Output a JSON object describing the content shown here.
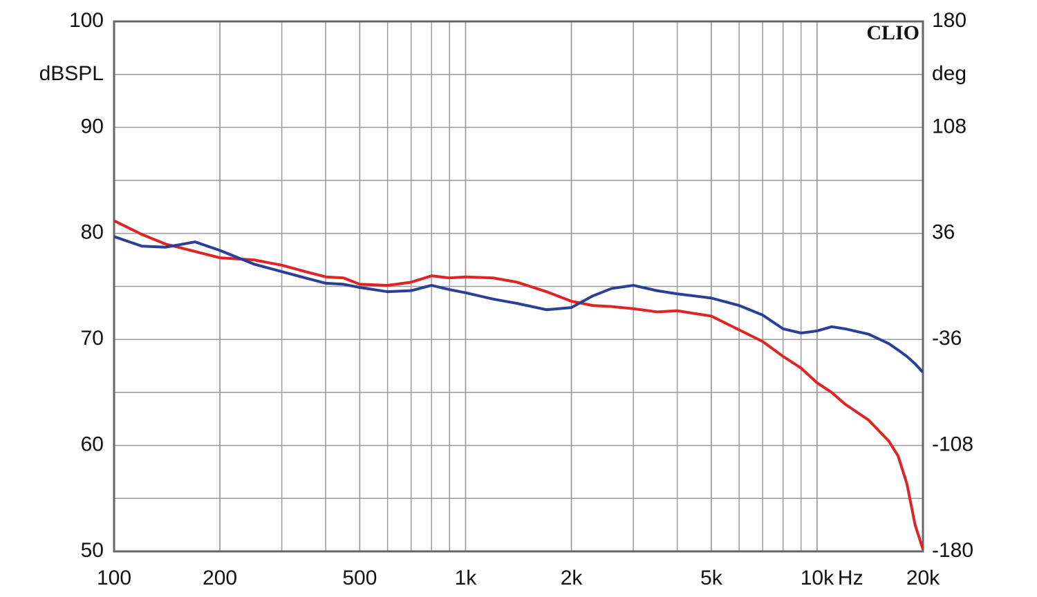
{
  "chart_data": {
    "type": "line",
    "y_label": "dBSPL",
    "y2_label": "deg",
    "x_unit": "Hz",
    "annotation": "CLIO",
    "x": [
      100,
      120,
      140,
      170,
      200,
      250,
      300,
      350,
      400,
      450,
      500,
      600,
      700,
      800,
      900,
      1000,
      1200,
      1400,
      1700,
      2000,
      2300,
      2600,
      3000,
      3500,
      4000,
      5000,
      6000,
      7000,
      8000,
      9000,
      10000,
      11000,
      12000,
      14000,
      16000,
      17000,
      18000,
      19000,
      20000
    ],
    "series": [
      {
        "color": "#e02323",
        "values": [
          81.2,
          79.9,
          79.0,
          78.3,
          77.7,
          77.5,
          77.0,
          76.4,
          75.9,
          75.8,
          75.2,
          75.1,
          75.4,
          76.0,
          75.8,
          75.9,
          75.8,
          75.4,
          74.5,
          73.6,
          73.2,
          73.1,
          72.9,
          72.6,
          72.7,
          72.2,
          70.9,
          69.8,
          68.4,
          67.3,
          65.9,
          65.0,
          63.9,
          62.4,
          60.4,
          59.0,
          56.4,
          52.5,
          50.2
        ]
      },
      {
        "color": "#2b3f98",
        "values": [
          79.7,
          78.8,
          78.7,
          79.2,
          78.4,
          77.1,
          76.4,
          75.8,
          75.3,
          75.2,
          74.9,
          74.5,
          74.6,
          75.1,
          74.7,
          74.4,
          73.8,
          73.4,
          72.8,
          73.0,
          74.1,
          74.8,
          75.1,
          74.6,
          74.3,
          73.9,
          73.2,
          72.3,
          71.0,
          70.6,
          70.8,
          71.2,
          71.0,
          70.5,
          69.6,
          69.0,
          68.4,
          67.7,
          66.9
        ]
      }
    ],
    "log_x": true,
    "xlim": [
      100,
      20000
    ],
    "xticks": [
      100,
      200,
      500,
      {
        "value": 1000,
        "label": "1k"
      },
      {
        "value": 2000,
        "label": "2k"
      },
      {
        "value": 5000,
        "label": "5k"
      },
      {
        "value": 10000,
        "label": "10k"
      },
      {
        "value": 20000,
        "label": "20k"
      }
    ],
    "ylim": [
      50,
      100
    ],
    "yticks": [
      50,
      60,
      70,
      80,
      90,
      100
    ],
    "y2lim": [
      -180,
      180
    ],
    "y2ticks": [
      -180,
      -108,
      -36,
      36,
      108,
      180
    ],
    "grid": true
  }
}
